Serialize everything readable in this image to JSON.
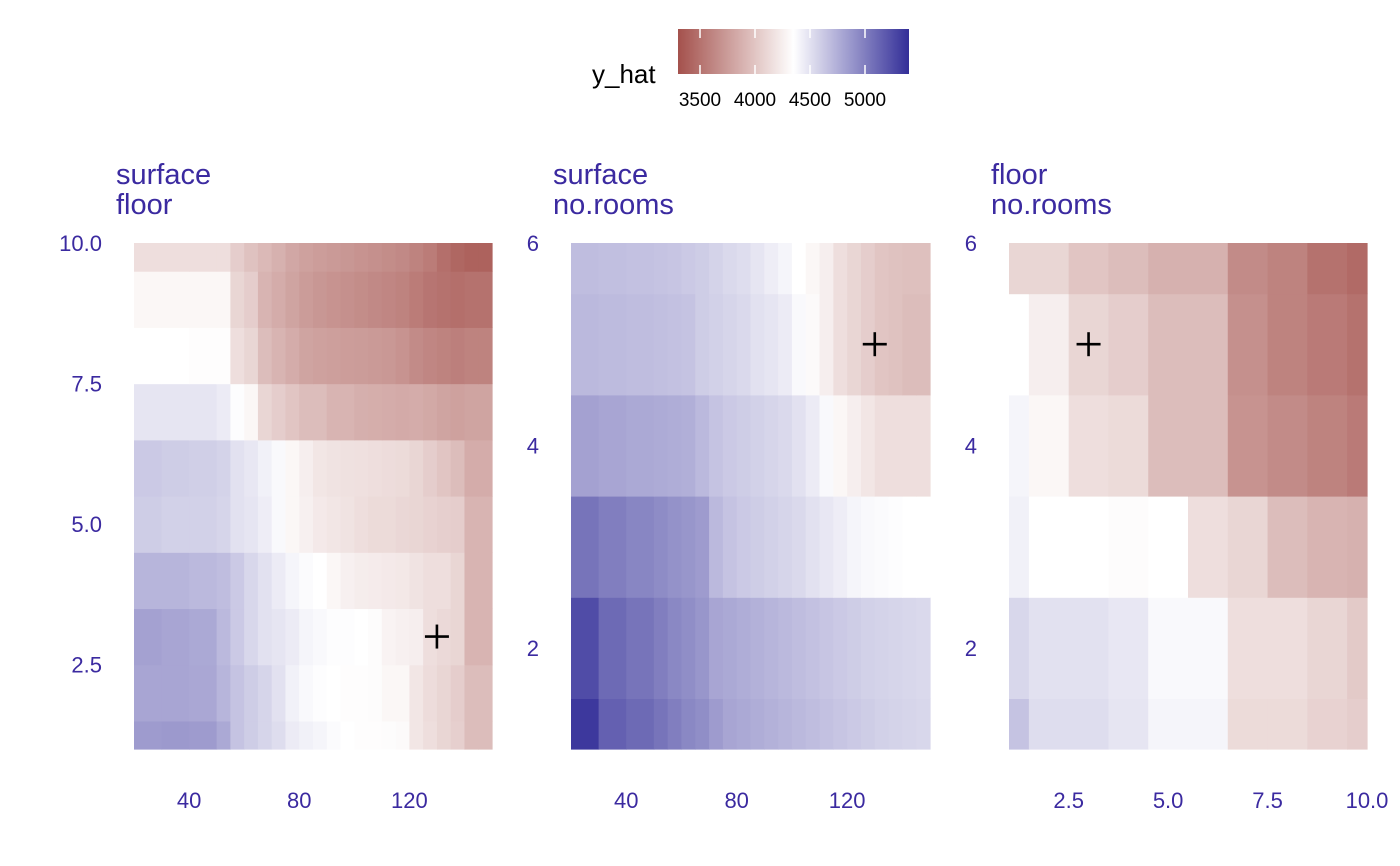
{
  "chart_data": {
    "type": "heatmap",
    "legend": {
      "title": "y_hat",
      "range": [
        3300,
        5400
      ],
      "ticks": [
        3500,
        4000,
        4500,
        5000
      ],
      "tick_labels": [
        "3500",
        "4000",
        "4500",
        "5000"
      ],
      "placement": "top-center",
      "colors": {
        "low": "#a4514c",
        "mid": "#ffffff",
        "high": "#332e98"
      },
      "midpoint": 4350
    },
    "panels": [
      {
        "title_lines": [
          "surface",
          "floor"
        ],
        "x_range": [
          20,
          150
        ],
        "y_range": [
          1,
          10
        ],
        "x_ticks": [
          40,
          80,
          120
        ],
        "x_tick_labels": [
          "40",
          "80",
          "120"
        ],
        "y_ticks": [
          2.5,
          5.0,
          7.5,
          10.0
        ],
        "y_tick_labels": [
          "2.5",
          "5.0",
          "7.5",
          "10.0"
        ],
        "x_breaks": [
          20,
          30,
          40,
          50,
          55,
          60,
          65,
          70,
          75,
          80,
          85,
          90,
          95,
          100,
          105,
          110,
          115,
          120,
          125,
          130,
          135,
          140,
          145,
          150
        ],
        "y_breaks": [
          1,
          1.5,
          2.5,
          3.5,
          4.5,
          5.5,
          6.5,
          7.5,
          8.5,
          9.5,
          10
        ],
        "z": [
          [
            4850,
            4860,
            4850,
            4780,
            4650,
            4600,
            4560,
            4520,
            4450,
            4420,
            4400,
            4370,
            4350,
            4340,
            4340,
            4330,
            4320,
            4200,
            4150,
            4100,
            4060,
            3950,
            3950
          ],
          [
            4800,
            4800,
            4790,
            4720,
            4650,
            4600,
            4560,
            4500,
            4420,
            4380,
            4360,
            4350,
            4340,
            4340,
            4330,
            4300,
            4300,
            4200,
            4140,
            4100,
            4050,
            3950,
            3950
          ],
          [
            4820,
            4800,
            4780,
            4700,
            4620,
            4550,
            4500,
            4480,
            4450,
            4400,
            4380,
            4360,
            4360,
            4350,
            4330,
            4280,
            4260,
            4250,
            4150,
            4120,
            4100,
            3900,
            3900
          ],
          [
            4720,
            4720,
            4700,
            4680,
            4620,
            4550,
            4500,
            4450,
            4400,
            4370,
            4350,
            4300,
            4260,
            4240,
            4230,
            4220,
            4210,
            4180,
            4150,
            4150,
            4100,
            3900,
            3900
          ],
          [
            4600,
            4580,
            4580,
            4560,
            4500,
            4480,
            4440,
            4380,
            4300,
            4260,
            4220,
            4200,
            4180,
            4150,
            4130,
            4130,
            4110,
            4100,
            4080,
            4060,
            4050,
            3900,
            3900
          ],
          [
            4620,
            4600,
            4590,
            4570,
            4500,
            4470,
            4420,
            4380,
            4300,
            4250,
            4200,
            4180,
            4170,
            4160,
            4150,
            4140,
            4130,
            4100,
            4050,
            4000,
            3950,
            3850,
            3850
          ],
          [
            4480,
            4480,
            4480,
            4450,
            4360,
            4300,
            4100,
            4050,
            4000,
            3950,
            3950,
            3900,
            3900,
            3870,
            3860,
            3850,
            3840,
            3850,
            3830,
            3800,
            3780,
            3800,
            3800
          ],
          [
            4350,
            4350,
            4340,
            4340,
            4150,
            4100,
            3950,
            3900,
            3850,
            3800,
            3780,
            3770,
            3760,
            3750,
            3740,
            3730,
            3700,
            3650,
            3620,
            3600,
            3580,
            3600,
            3600
          ],
          [
            4300,
            4300,
            4300,
            4300,
            4100,
            4050,
            3900,
            3850,
            3800,
            3750,
            3720,
            3700,
            3680,
            3660,
            3640,
            3620,
            3600,
            3560,
            3520,
            3500,
            3480,
            3500,
            3500
          ],
          [
            4150,
            4150,
            4150,
            4150,
            4050,
            3980,
            3930,
            3880,
            3820,
            3780,
            3760,
            3740,
            3720,
            3700,
            3680,
            3660,
            3640,
            3600,
            3560,
            3480,
            3430,
            3400,
            3400
          ]
        ],
        "cross": {
          "x": 130,
          "y": 3
        }
      },
      {
        "title_lines": [
          "surface",
          "no.rooms"
        ],
        "x_range": [
          20,
          150
        ],
        "y_range": [
          1,
          6
        ],
        "x_ticks": [
          40,
          80,
          120
        ],
        "x_tick_labels": [
          "40",
          "80",
          "120"
        ],
        "y_ticks": [
          2,
          4,
          6
        ],
        "y_tick_labels": [
          "2",
          "4",
          "6"
        ],
        "x_breaks": [
          20,
          30,
          40,
          50,
          55,
          60,
          65,
          70,
          75,
          80,
          85,
          90,
          95,
          100,
          105,
          110,
          115,
          120,
          125,
          130,
          135,
          140,
          145,
          150
        ],
        "y_breaks": [
          1,
          1.5,
          2.5,
          3.5,
          4.5,
          5.5,
          6
        ],
        "z": [
          [
            5350,
            5150,
            5100,
            5050,
            5000,
            4950,
            4920,
            4850,
            4800,
            4780,
            4760,
            4740,
            4720,
            4700,
            4680,
            4660,
            4640,
            4620,
            4600,
            4580,
            4570,
            4560,
            4550
          ],
          [
            5250,
            5100,
            5050,
            5000,
            4950,
            4920,
            4880,
            4800,
            4780,
            4760,
            4740,
            4720,
            4700,
            4680,
            4660,
            4640,
            4620,
            4600,
            4580,
            4570,
            4560,
            4550,
            4540
          ],
          [
            5050,
            5000,
            4960,
            4930,
            4900,
            4880,
            4850,
            4700,
            4650,
            4620,
            4600,
            4580,
            4560,
            4540,
            4500,
            4470,
            4440,
            4400,
            4380,
            4370,
            4360,
            4350,
            4350
          ],
          [
            4820,
            4800,
            4780,
            4770,
            4760,
            4750,
            4700,
            4650,
            4620,
            4600,
            4580,
            4560,
            4540,
            4500,
            4450,
            4380,
            4300,
            4250,
            4200,
            4150,
            4150,
            4150,
            4150
          ],
          [
            4700,
            4690,
            4680,
            4670,
            4660,
            4650,
            4600,
            4580,
            4560,
            4540,
            4500,
            4480,
            4450,
            4380,
            4320,
            4250,
            4150,
            4100,
            4050,
            4000,
            3980,
            3950,
            3950
          ],
          [
            4680,
            4670,
            4660,
            4650,
            4640,
            4620,
            4600,
            4570,
            4540,
            4520,
            4480,
            4440,
            4400,
            4350,
            4300,
            4250,
            4150,
            4100,
            4050,
            4000,
            3980,
            3970,
            3970
          ]
        ],
        "cross": {
          "x": 130,
          "y": 5
        }
      },
      {
        "title_lines": [
          "floor",
          "no.rooms"
        ],
        "x_range": [
          1,
          10
        ],
        "y_range": [
          1,
          6
        ],
        "x_ticks": [
          2.5,
          5.0,
          7.5,
          10.0
        ],
        "x_tick_labels": [
          "2.5",
          "5.0",
          "7.5",
          "10.0"
        ],
        "y_ticks": [
          2,
          4,
          6
        ],
        "y_tick_labels": [
          "2",
          "4",
          "6"
        ],
        "x_breaks": [
          1,
          1.5,
          2.5,
          3.5,
          4.5,
          5.5,
          6.5,
          7.5,
          8.5,
          9.5,
          10
        ],
        "y_breaks": [
          1,
          1.5,
          2.5,
          3.5,
          4.5,
          5.5,
          6
        ],
        "z": [
          [
            4650,
            4520,
            4520,
            4480,
            4400,
            4400,
            4130,
            4130,
            4080,
            4050
          ],
          [
            4550,
            4500,
            4500,
            4470,
            4380,
            4380,
            4150,
            4150,
            4100,
            4030
          ],
          [
            4420,
            4350,
            4350,
            4330,
            4350,
            4150,
            4100,
            3950,
            3900,
            3880
          ],
          [
            4400,
            4300,
            4150,
            4130,
            3950,
            3950,
            3700,
            3650,
            3600,
            3550
          ],
          [
            4350,
            4250,
            4100,
            4050,
            3950,
            3950,
            3680,
            3600,
            3550,
            3500
          ],
          [
            4100,
            4100,
            4000,
            3950,
            3880,
            3880,
            3650,
            3600,
            3500,
            3450
          ]
        ],
        "cross": {
          "x": 3,
          "y": 5
        }
      }
    ]
  }
}
